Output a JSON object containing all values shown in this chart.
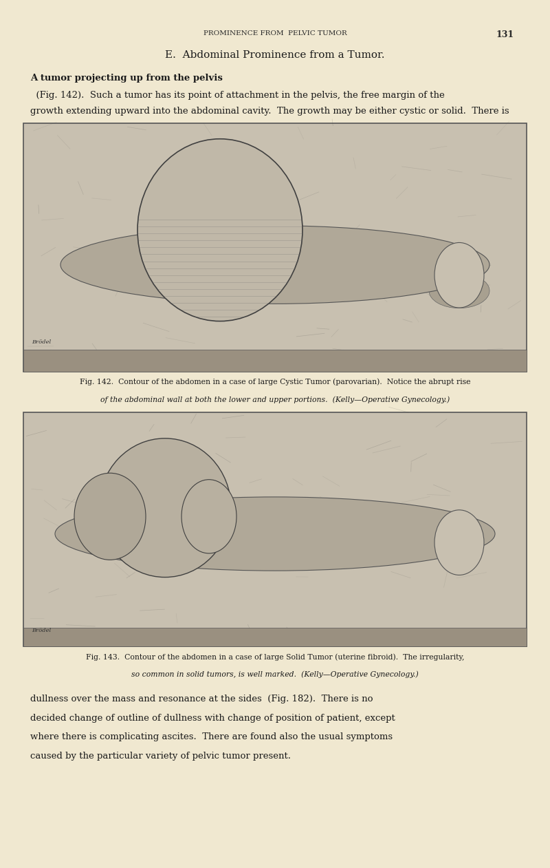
{
  "background_color": "#f0e8d0",
  "page_width": 8.0,
  "page_height": 12.61,
  "dpi": 100,
  "header_text": "PROMINENCE FROM  PELVIC TUMOR",
  "page_number": "131",
  "title": "E.  Abdominal Prominence from a Tumor.",
  "paragraph1_bold": "A tumor projecting up from the pelvis",
  "paragraph1_normal": " (Fig. 142).  Such a tumor has its point of attachment in the pelvis, the free margin of the growth extending upward into the abdominal cavity.  The growth may be either cystic or solid.  There is",
  "fig142_caption_line1": "Fig. 142.  Contour of the abdomen in a case of large Cystic Tumor (parovarian).  Notice the abrupt rise",
  "fig142_caption_line2": "of the abdominal wall at both the lower and upper portions.  (Kelly—Operative Gynecology.)",
  "fig143_caption_line1": "Fig. 143.  Contour of the abdomen in a case of large Solid Tumor (uterine fibroid).  The irregularity,",
  "fig143_caption_line2": "so common in solid tumors, is well marked.  (Kelly—Operative Gynecology.)",
  "para2_line1": "dullness over the mass and resonance at the sides  (Fig. 182).  There is no",
  "para2_line2": "decided change of outline of dullness with change of position of patient, except",
  "para2_line3": "where there is complicating ascites.  There are found also the usual symptoms",
  "para2_line4": "caused by the particular variety of pelvic tumor present.",
  "text_color": "#1a1a1a",
  "header_color": "#2a2a2a",
  "fig_border_color": "#555555",
  "fig_bg_color": "#c8c0b0"
}
